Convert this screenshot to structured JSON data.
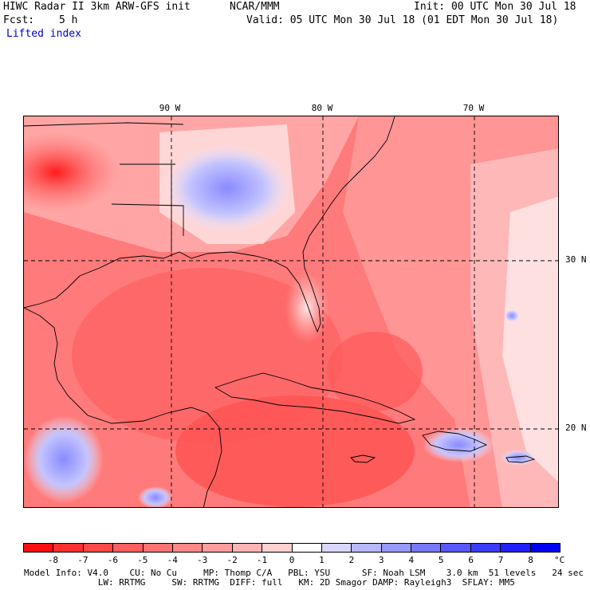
{
  "header": {
    "model_title": "HIWC Radar II 3km ARW-GFS init",
    "org": "NCAR/MMM",
    "init": "Init: 00 UTC Mon 30 Jul 18",
    "fcst_label": "Fcst:",
    "fcst_value": "5 h",
    "valid": "Valid: 05 UTC Mon 30 Jul 18 (01 EDT Mon 30 Jul 18)",
    "field": "Lifted index"
  },
  "map": {
    "lon_labels": [
      "90 W",
      "80 W",
      "70 W"
    ],
    "lat_labels": [
      "30 N",
      "20 N"
    ]
  },
  "legend": {
    "tick_labels": [
      "-8",
      "-7",
      "-6",
      "-5",
      "-4",
      "-3",
      "-2",
      "-1",
      "0",
      "1",
      "2",
      "3",
      "4",
      "5",
      "6",
      "7",
      "8"
    ],
    "unit": "°C",
    "colors": [
      "#ff1010",
      "#ff3030",
      "#ff4848",
      "#ff5e5e",
      "#ff7373",
      "#ff8888",
      "#ff9d9d",
      "#ffb4b4",
      "#ffd0d0",
      "#ffffff",
      "#d8d8ff",
      "#b8b8ff",
      "#9898ff",
      "#7878ff",
      "#5858ff",
      "#3c3cff",
      "#2020ff",
      "#0000f0"
    ]
  },
  "footer": {
    "line1": "Model Info: V4.0    CU: No Cu     MP: Thomp C/A   PBL: YSU      SF: Noah LSM    3.0 km  51 levels   24 sec",
    "line2": "              LW: RRTMG     SW: RRTMG  DIFF: full   KM: 2D Smagor DAMP: Rayleigh3  SFLAY: MM5"
  }
}
